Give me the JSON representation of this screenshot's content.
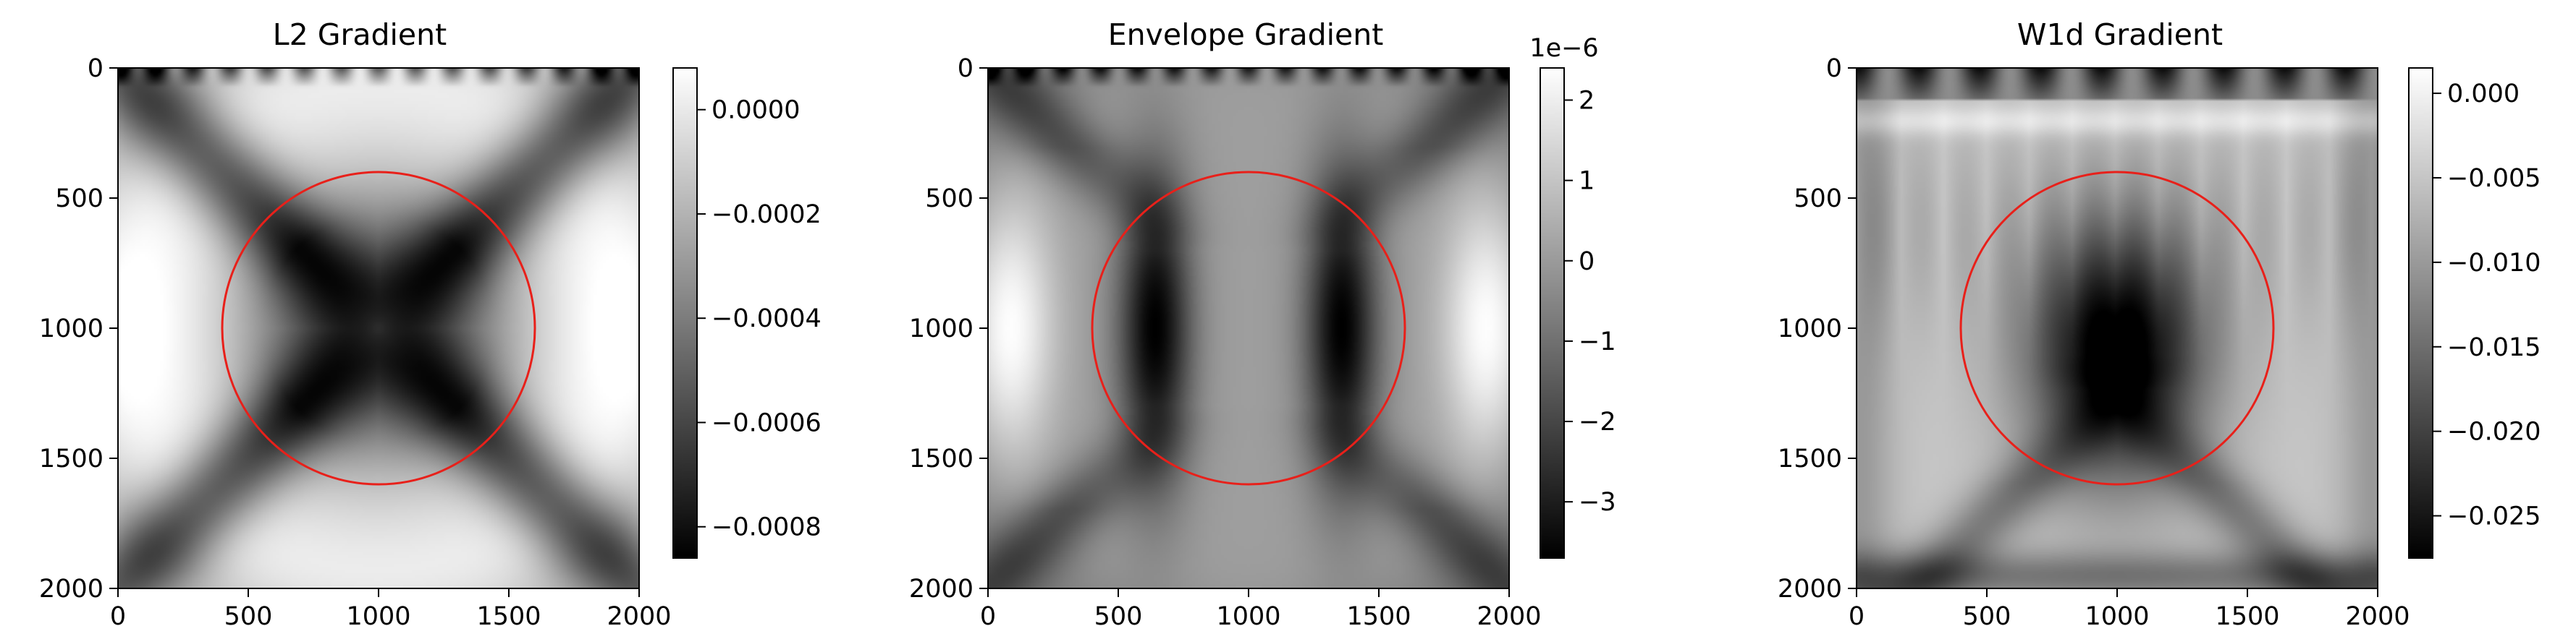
{
  "chart_data": [
    {
      "type": "heatmap",
      "title": "L2 Gradient",
      "xlabel": "",
      "ylabel": "",
      "colormap": "gray",
      "x_range": [
        0,
        2000
      ],
      "y_range": [
        2000,
        0
      ],
      "x_ticks": [
        "0",
        "500",
        "1000",
        "1500",
        "2000"
      ],
      "y_ticks": [
        "0",
        "500",
        "1000",
        "1500",
        "2000"
      ],
      "colorbar": {
        "range": [
          -0.00086,
          8e-05
        ],
        "ticks": [
          {
            "value": 0.0,
            "label": "0.0000"
          },
          {
            "value": -0.0002,
            "label": "−0.0002"
          },
          {
            "value": -0.0004,
            "label": "−0.0004"
          },
          {
            "value": -0.0006,
            "label": "−0.0006"
          },
          {
            "value": -0.0008,
            "label": "−0.0008"
          }
        ],
        "multiplier": ""
      },
      "overlay": {
        "shape": "circle",
        "center": [
          1000,
          1000
        ],
        "radius": 600,
        "color": "#e8201a"
      },
      "field": "l2",
      "grid": false
    },
    {
      "type": "heatmap",
      "title": "Envelope Gradient",
      "xlabel": "",
      "ylabel": "",
      "colormap": "gray",
      "x_range": [
        0,
        2000
      ],
      "y_range": [
        2000,
        0
      ],
      "x_ticks": [
        "0",
        "500",
        "1000",
        "1500",
        "2000"
      ],
      "y_ticks": [
        "0",
        "500",
        "1000",
        "1500",
        "2000"
      ],
      "colorbar": {
        "range": [
          -3.7,
          2.4
        ],
        "ticks": [
          {
            "value": 2,
            "label": "2"
          },
          {
            "value": 1,
            "label": "1"
          },
          {
            "value": 0,
            "label": "0"
          },
          {
            "value": -1,
            "label": "−1"
          },
          {
            "value": -2,
            "label": "−2"
          },
          {
            "value": -3,
            "label": "−3"
          }
        ],
        "multiplier": "1e−6"
      },
      "overlay": {
        "shape": "circle",
        "center": [
          1000,
          1000
        ],
        "radius": 600,
        "color": "#e8201a"
      },
      "field": "envelope",
      "grid": false
    },
    {
      "type": "heatmap",
      "title": "W1d Gradient",
      "xlabel": "",
      "ylabel": "",
      "colormap": "gray",
      "x_range": [
        0,
        2000
      ],
      "y_range": [
        2000,
        0
      ],
      "x_ticks": [
        "0",
        "500",
        "1000",
        "1500",
        "2000"
      ],
      "y_ticks": [
        "0",
        "500",
        "1000",
        "1500",
        "2000"
      ],
      "colorbar": {
        "range": [
          -0.0275,
          0.0015
        ],
        "ticks": [
          {
            "value": 0.0,
            "label": "0.000"
          },
          {
            "value": -0.005,
            "label": "−0.005"
          },
          {
            "value": -0.01,
            "label": "−0.010"
          },
          {
            "value": -0.015,
            "label": "−0.015"
          },
          {
            "value": -0.02,
            "label": "−0.020"
          },
          {
            "value": -0.025,
            "label": "−0.025"
          }
        ],
        "multiplier": ""
      },
      "overlay": {
        "shape": "circle",
        "center": [
          1000,
          1000
        ],
        "radius": 600,
        "color": "#e8201a"
      },
      "field": "w1d",
      "grid": false
    }
  ]
}
